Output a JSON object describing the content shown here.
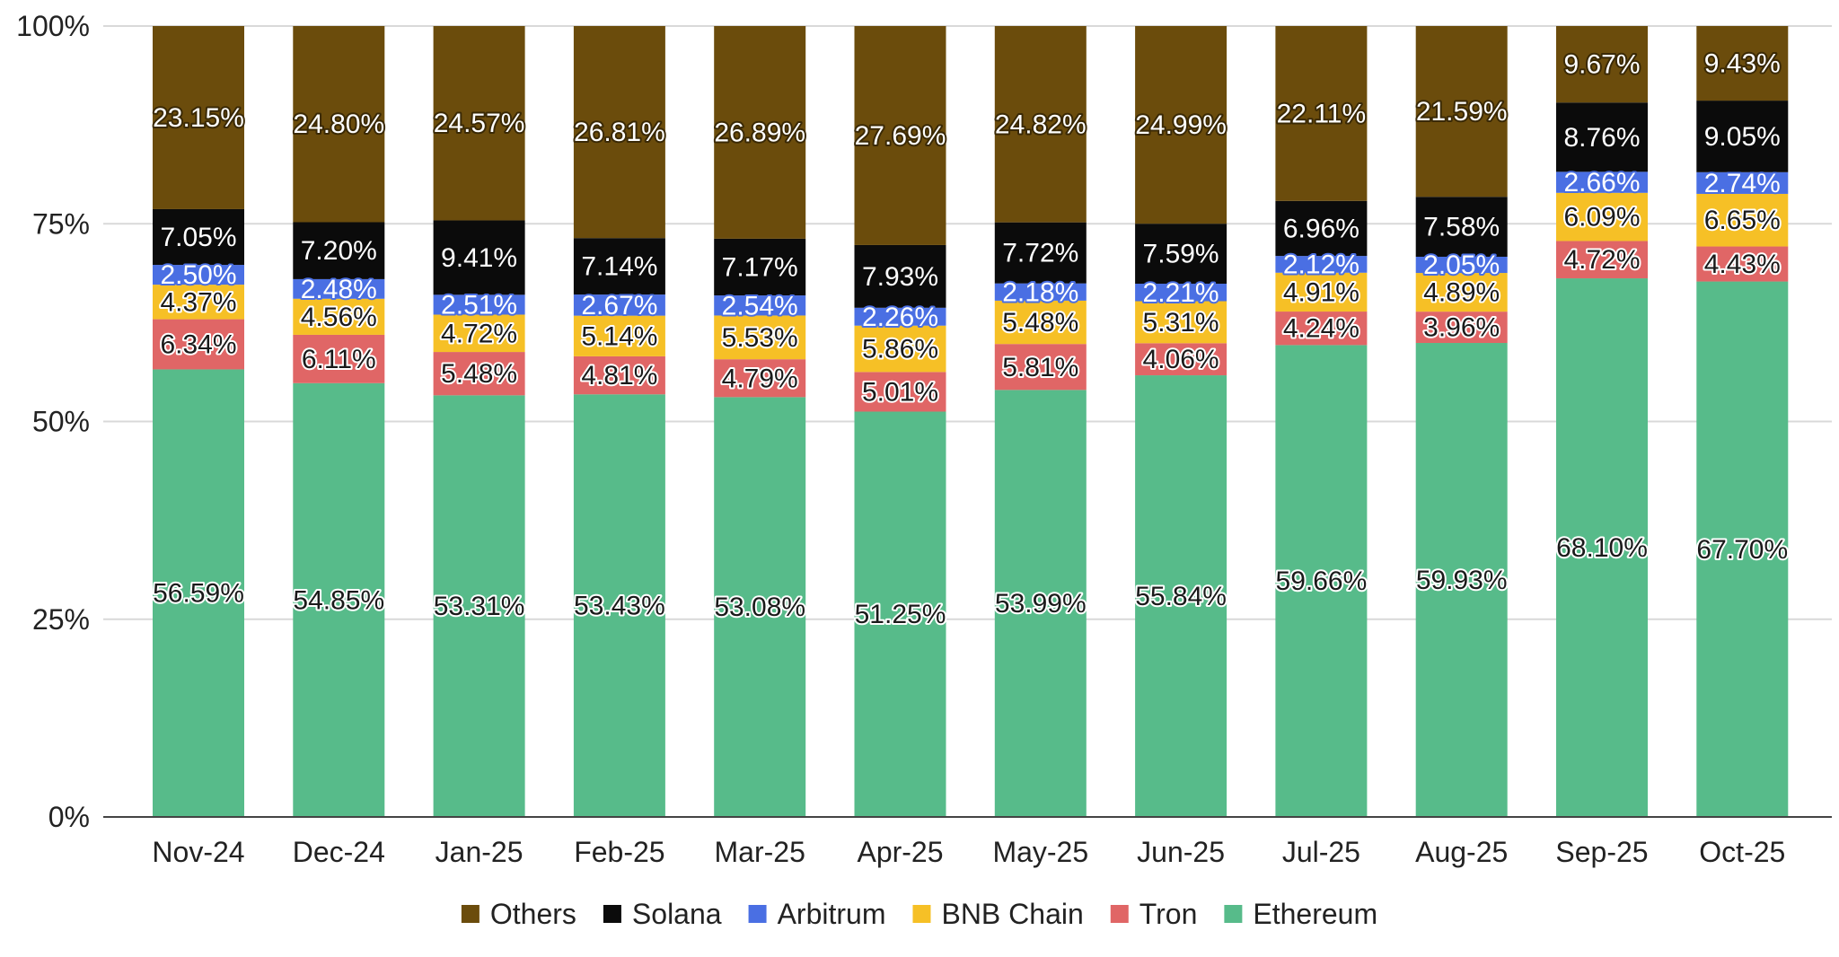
{
  "chart_data": {
    "type": "bar",
    "stacked": true,
    "categories": [
      "Nov-24",
      "Dec-24",
      "Jan-25",
      "Feb-25",
      "Mar-25",
      "Apr-25",
      "May-25",
      "Jun-25",
      "Jul-25",
      "Aug-25",
      "Sep-25",
      "Oct-25"
    ],
    "series": [
      {
        "name": "Ethereum",
        "color": "#57bb8a",
        "label_color": "#1a1a1a",
        "label_outline": "#ffffff",
        "values": [
          56.59,
          54.85,
          53.31,
          53.43,
          53.08,
          51.25,
          53.99,
          55.84,
          59.66,
          59.93,
          68.1,
          67.7
        ],
        "labels": [
          "56.59%",
          "54.85%",
          "53.31%",
          "53.43%",
          "53.08%",
          "51.25%",
          "53.99%",
          "55.84%",
          "59.66%",
          "59.93%",
          "68.10%",
          "67.70%"
        ]
      },
      {
        "name": "Tron",
        "color": "#e06666",
        "label_color": "#1a1a1a",
        "label_outline": "#ffffff",
        "values": [
          6.34,
          6.11,
          5.48,
          4.81,
          4.79,
          5.01,
          5.81,
          4.06,
          4.24,
          3.96,
          4.72,
          4.43
        ],
        "labels": [
          "6.34%",
          "6.11%",
          "5.48%",
          "4.81%",
          "4.79%",
          "5.01%",
          "5.81%",
          "4.06%",
          "4.24%",
          "3.96%",
          "4.72%",
          "4.43%"
        ]
      },
      {
        "name": "BNB Chain",
        "color": "#f6c026",
        "label_color": "#1a1a1a",
        "label_outline": "#ffffff",
        "values": [
          4.37,
          4.56,
          4.72,
          5.14,
          5.53,
          5.86,
          5.48,
          5.31,
          4.91,
          4.89,
          6.09,
          6.65
        ],
        "labels": [
          "4.37%",
          "4.56%",
          "4.72%",
          "5.14%",
          "5.53%",
          "5.86%",
          "5.48%",
          "5.31%",
          "4.91%",
          "4.89%",
          "6.09%",
          "6.65%"
        ]
      },
      {
        "name": "Arbitrum",
        "color": "#4a6fe3",
        "label_color": "#ffffff",
        "label_outline": "#4a6fe3",
        "values": [
          2.5,
          2.48,
          2.51,
          2.67,
          2.54,
          2.26,
          2.18,
          2.21,
          2.12,
          2.05,
          2.66,
          2.74
        ],
        "labels": [
          "2.50%",
          "2.48%",
          "2.51%",
          "2.67%",
          "2.54%",
          "2.26%",
          "2.18%",
          "2.21%",
          "2.12%",
          "2.05%",
          "2.66%",
          "2.74%"
        ]
      },
      {
        "name": "Solana",
        "color": "#0b0b0b",
        "label_color": "#ffffff",
        "label_outline": "#0b0b0b",
        "values": [
          7.05,
          7.2,
          9.41,
          7.14,
          7.17,
          7.93,
          7.72,
          7.59,
          6.96,
          7.58,
          8.76,
          9.05
        ],
        "labels": [
          "7.05%",
          "7.20%",
          "9.41%",
          "7.14%",
          "7.17%",
          "7.93%",
          "7.72%",
          "7.59%",
          "6.96%",
          "7.58%",
          "8.76%",
          "9.05%"
        ]
      },
      {
        "name": "Others",
        "color": "#6b4c0c",
        "label_color": "#ffffff",
        "label_outline": "#3a2905",
        "values": [
          23.15,
          24.8,
          24.57,
          26.81,
          26.89,
          27.69,
          24.82,
          24.99,
          22.11,
          21.59,
          9.67,
          9.43
        ],
        "labels": [
          "23.15%",
          "24.80%",
          "24.57%",
          "26.81%",
          "26.89%",
          "27.69%",
          "24.82%",
          "24.99%",
          "22.11%",
          "21.59%",
          "9.67%",
          "9.43%"
        ]
      }
    ],
    "y_ticks": [
      "0%",
      "25%",
      "50%",
      "75%",
      "100%"
    ],
    "y_tick_values": [
      0,
      25,
      50,
      75,
      100
    ],
    "ylim": [
      0,
      100
    ],
    "grid": true,
    "legend_position": "bottom",
    "legend_order": [
      "Others",
      "Solana",
      "Arbitrum",
      "BNB Chain",
      "Tron",
      "Ethereum"
    ],
    "title": "",
    "xlabel": "",
    "ylabel": ""
  }
}
